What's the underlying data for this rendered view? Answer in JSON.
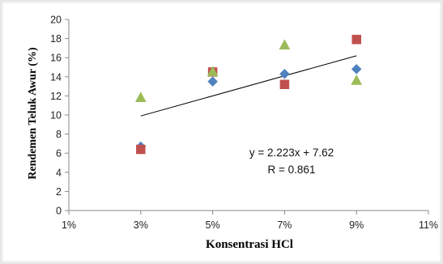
{
  "chart_data": {
    "type": "scatter",
    "xlabel": "Konsentrasi HCl",
    "ylabel": "Rendemen Teluk Awur (%)",
    "x_ticks": [
      "1%",
      "3%",
      "5%",
      "7%",
      "9%",
      "11%"
    ],
    "y_ticks": [
      "0",
      "2",
      "4",
      "6",
      "8",
      "10",
      "12",
      "14",
      "16",
      "18",
      "20"
    ],
    "xlim": [
      1,
      11
    ],
    "ylim": [
      0,
      20
    ],
    "grid": false,
    "series": [
      {
        "marker": "diamond",
        "color": "#4F81BD",
        "points": [
          {
            "x": 3,
            "y": 6.7
          },
          {
            "x": 5,
            "y": 13.5
          },
          {
            "x": 7,
            "y": 14.3
          },
          {
            "x": 9,
            "y": 14.8
          }
        ]
      },
      {
        "marker": "square",
        "color": "#C0504D",
        "points": [
          {
            "x": 3,
            "y": 6.4
          },
          {
            "x": 5,
            "y": 14.5
          },
          {
            "x": 7,
            "y": 13.2
          },
          {
            "x": 9,
            "y": 17.9
          }
        ]
      },
      {
        "marker": "triangle",
        "color": "#9BBB59",
        "points": [
          {
            "x": 3,
            "y": 11.8
          },
          {
            "x": 5,
            "y": 14.5
          },
          {
            "x": 7,
            "y": 17.3
          },
          {
            "x": 9,
            "y": 13.6
          }
        ]
      }
    ],
    "trendline": {
      "x_start": 3,
      "x_end": 9,
      "y_start": 9.9,
      "y_end": 16.2,
      "color": "#000000"
    },
    "annotations": {
      "equation": "y = 2.223x + 7.62",
      "r_value": "R = 0.861"
    }
  }
}
